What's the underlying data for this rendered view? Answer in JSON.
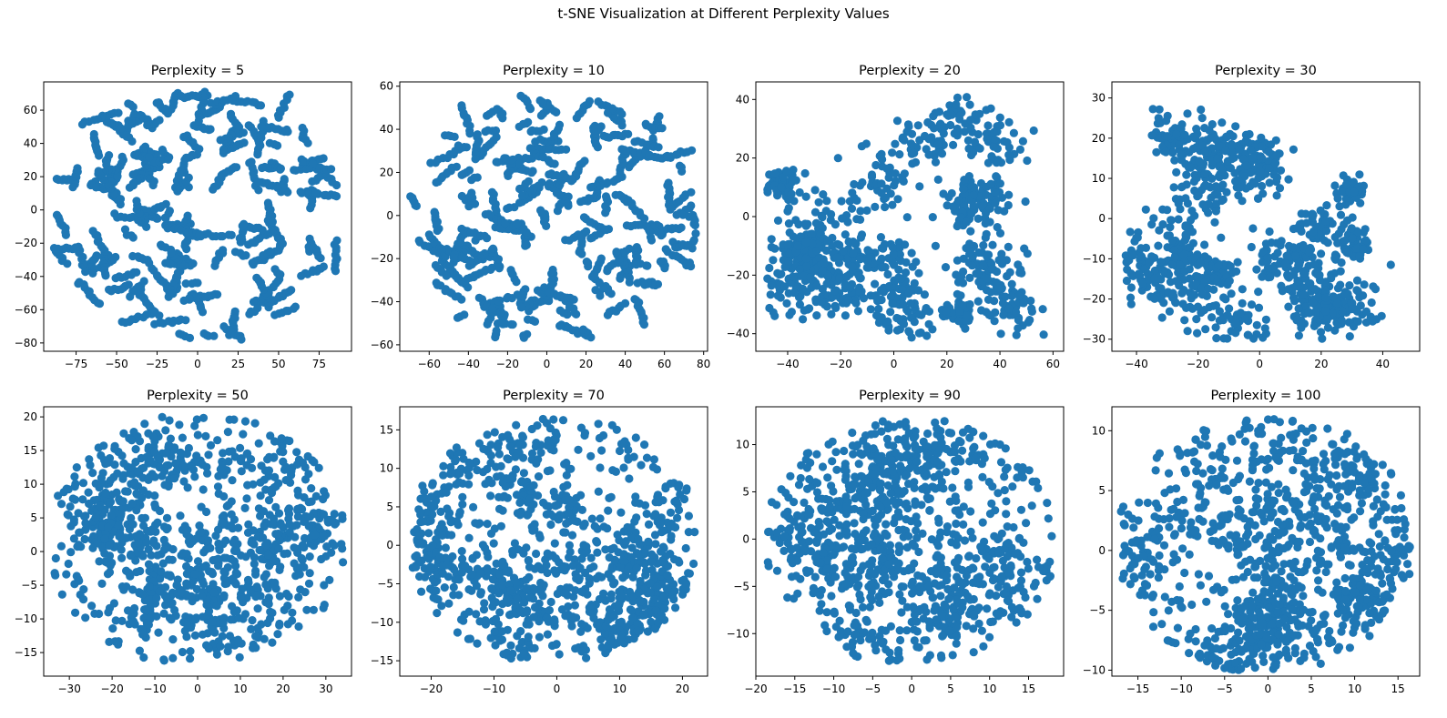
{
  "figure": {
    "title": "t-SNE Visualization at Different Perplexity Values"
  },
  "colors": {
    "points": "#1f77b4",
    "axes": "#000000",
    "background": "#ffffff"
  },
  "chart_data": [
    {
      "type": "scatter",
      "title": "Perplexity = 5",
      "seed": 5,
      "xlim": [
        -95,
        95
      ],
      "ylim": [
        -85,
        77
      ],
      "xticks": [
        -75,
        -50,
        -25,
        0,
        25,
        50,
        75
      ],
      "yticks": [
        -80,
        -60,
        -40,
        -20,
        0,
        20,
        40,
        60
      ],
      "structure": "strands",
      "grid": false,
      "series": [
        {
          "marker": "filled-circle",
          "approx_points": 1000,
          "spread": {
            "x": [
              -90,
              87
            ],
            "y": [
              -78,
              71
            ]
          }
        }
      ]
    },
    {
      "type": "scatter",
      "title": "Perplexity = 10",
      "seed": 10,
      "xlim": [
        -75,
        82
      ],
      "ylim": [
        -63,
        62
      ],
      "xticks": [
        -60,
        -40,
        -20,
        0,
        20,
        40,
        60,
        80
      ],
      "yticks": [
        -60,
        -40,
        -20,
        0,
        20,
        40,
        60
      ],
      "structure": "strands",
      "grid": false,
      "series": [
        {
          "marker": "filled-circle",
          "approx_points": 1000,
          "spread": {
            "x": [
              -70,
              76
            ],
            "y": [
              -58,
              56
            ]
          }
        }
      ]
    },
    {
      "type": "scatter",
      "title": "Perplexity = 20",
      "seed": 20,
      "xlim": [
        -52,
        64
      ],
      "ylim": [
        -46,
        46
      ],
      "xticks": [
        -40,
        -20,
        0,
        20,
        40,
        60
      ],
      "yticks": [
        -40,
        -20,
        0,
        20,
        40
      ],
      "structure": "blobs",
      "grid": false,
      "series": [
        {
          "marker": "filled-circle",
          "approx_points": 1000,
          "spread": {
            "x": [
              -48,
              59
            ],
            "y": [
              -42,
              41
            ]
          }
        }
      ]
    },
    {
      "type": "scatter",
      "title": "Perplexity = 30",
      "seed": 30,
      "xlim": [
        -48,
        52
      ],
      "ylim": [
        -33,
        34
      ],
      "xticks": [
        -40,
        -20,
        0,
        20,
        40
      ],
      "yticks": [
        -30,
        -20,
        -10,
        0,
        10,
        20,
        30
      ],
      "structure": "blobs",
      "grid": false,
      "series": [
        {
          "marker": "filled-circle",
          "approx_points": 1000,
          "spread": {
            "x": [
              -44,
              49
            ],
            "y": [
              -30,
              31
            ]
          }
        }
      ]
    },
    {
      "type": "scatter",
      "title": "Perplexity = 50",
      "seed": 50,
      "xlim": [
        -36,
        36
      ],
      "ylim": [
        -18.5,
        21.5
      ],
      "xticks": [
        -30,
        -20,
        -10,
        0,
        10,
        20,
        30
      ],
      "yticks": [
        -15,
        -10,
        -5,
        0,
        5,
        10,
        15,
        20
      ],
      "structure": "disc",
      "grid": false,
      "series": [
        {
          "marker": "filled-circle",
          "approx_points": 1000,
          "spread": {
            "x": [
              -34,
              34
            ],
            "y": [
              -17,
              20
            ]
          }
        }
      ]
    },
    {
      "type": "scatter",
      "title": "Perplexity = 70",
      "seed": 70,
      "xlim": [
        -25,
        24
      ],
      "ylim": [
        -17,
        18
      ],
      "xticks": [
        -20,
        -10,
        0,
        10,
        20
      ],
      "yticks": [
        -15,
        -10,
        -5,
        0,
        5,
        10,
        15
      ],
      "structure": "disc",
      "grid": false,
      "series": [
        {
          "marker": "filled-circle",
          "approx_points": 1000,
          "spread": {
            "x": [
              -23,
              22
            ],
            "y": [
              -15,
              16.5
            ]
          }
        }
      ]
    },
    {
      "type": "scatter",
      "title": "Perplexity = 90",
      "seed": 90,
      "xlim": [
        -20,
        19.5
      ],
      "ylim": [
        -14.5,
        14
      ],
      "xticks": [
        -20,
        -15,
        -10,
        -5,
        0,
        5,
        10,
        15
      ],
      "yticks": [
        -10,
        -5,
        0,
        5,
        10
      ],
      "structure": "disc",
      "grid": false,
      "series": [
        {
          "marker": "filled-circle",
          "approx_points": 1000,
          "spread": {
            "x": [
              -18.5,
              18
            ],
            "y": [
              -13,
              12.5
            ]
          }
        }
      ]
    },
    {
      "type": "scatter",
      "title": "Perplexity = 100",
      "seed": 100,
      "xlim": [
        -18,
        17.5
      ],
      "ylim": [
        -10.5,
        12
      ],
      "xticks": [
        -15,
        -10,
        -5,
        0,
        5,
        10,
        15
      ],
      "yticks": [
        -10,
        -5,
        0,
        5,
        10
      ],
      "structure": "disc",
      "grid": false,
      "series": [
        {
          "marker": "filled-circle",
          "approx_points": 1000,
          "spread": {
            "x": [
              -17,
              16.5
            ],
            "y": [
              -10,
              11.3
            ]
          }
        }
      ]
    }
  ]
}
